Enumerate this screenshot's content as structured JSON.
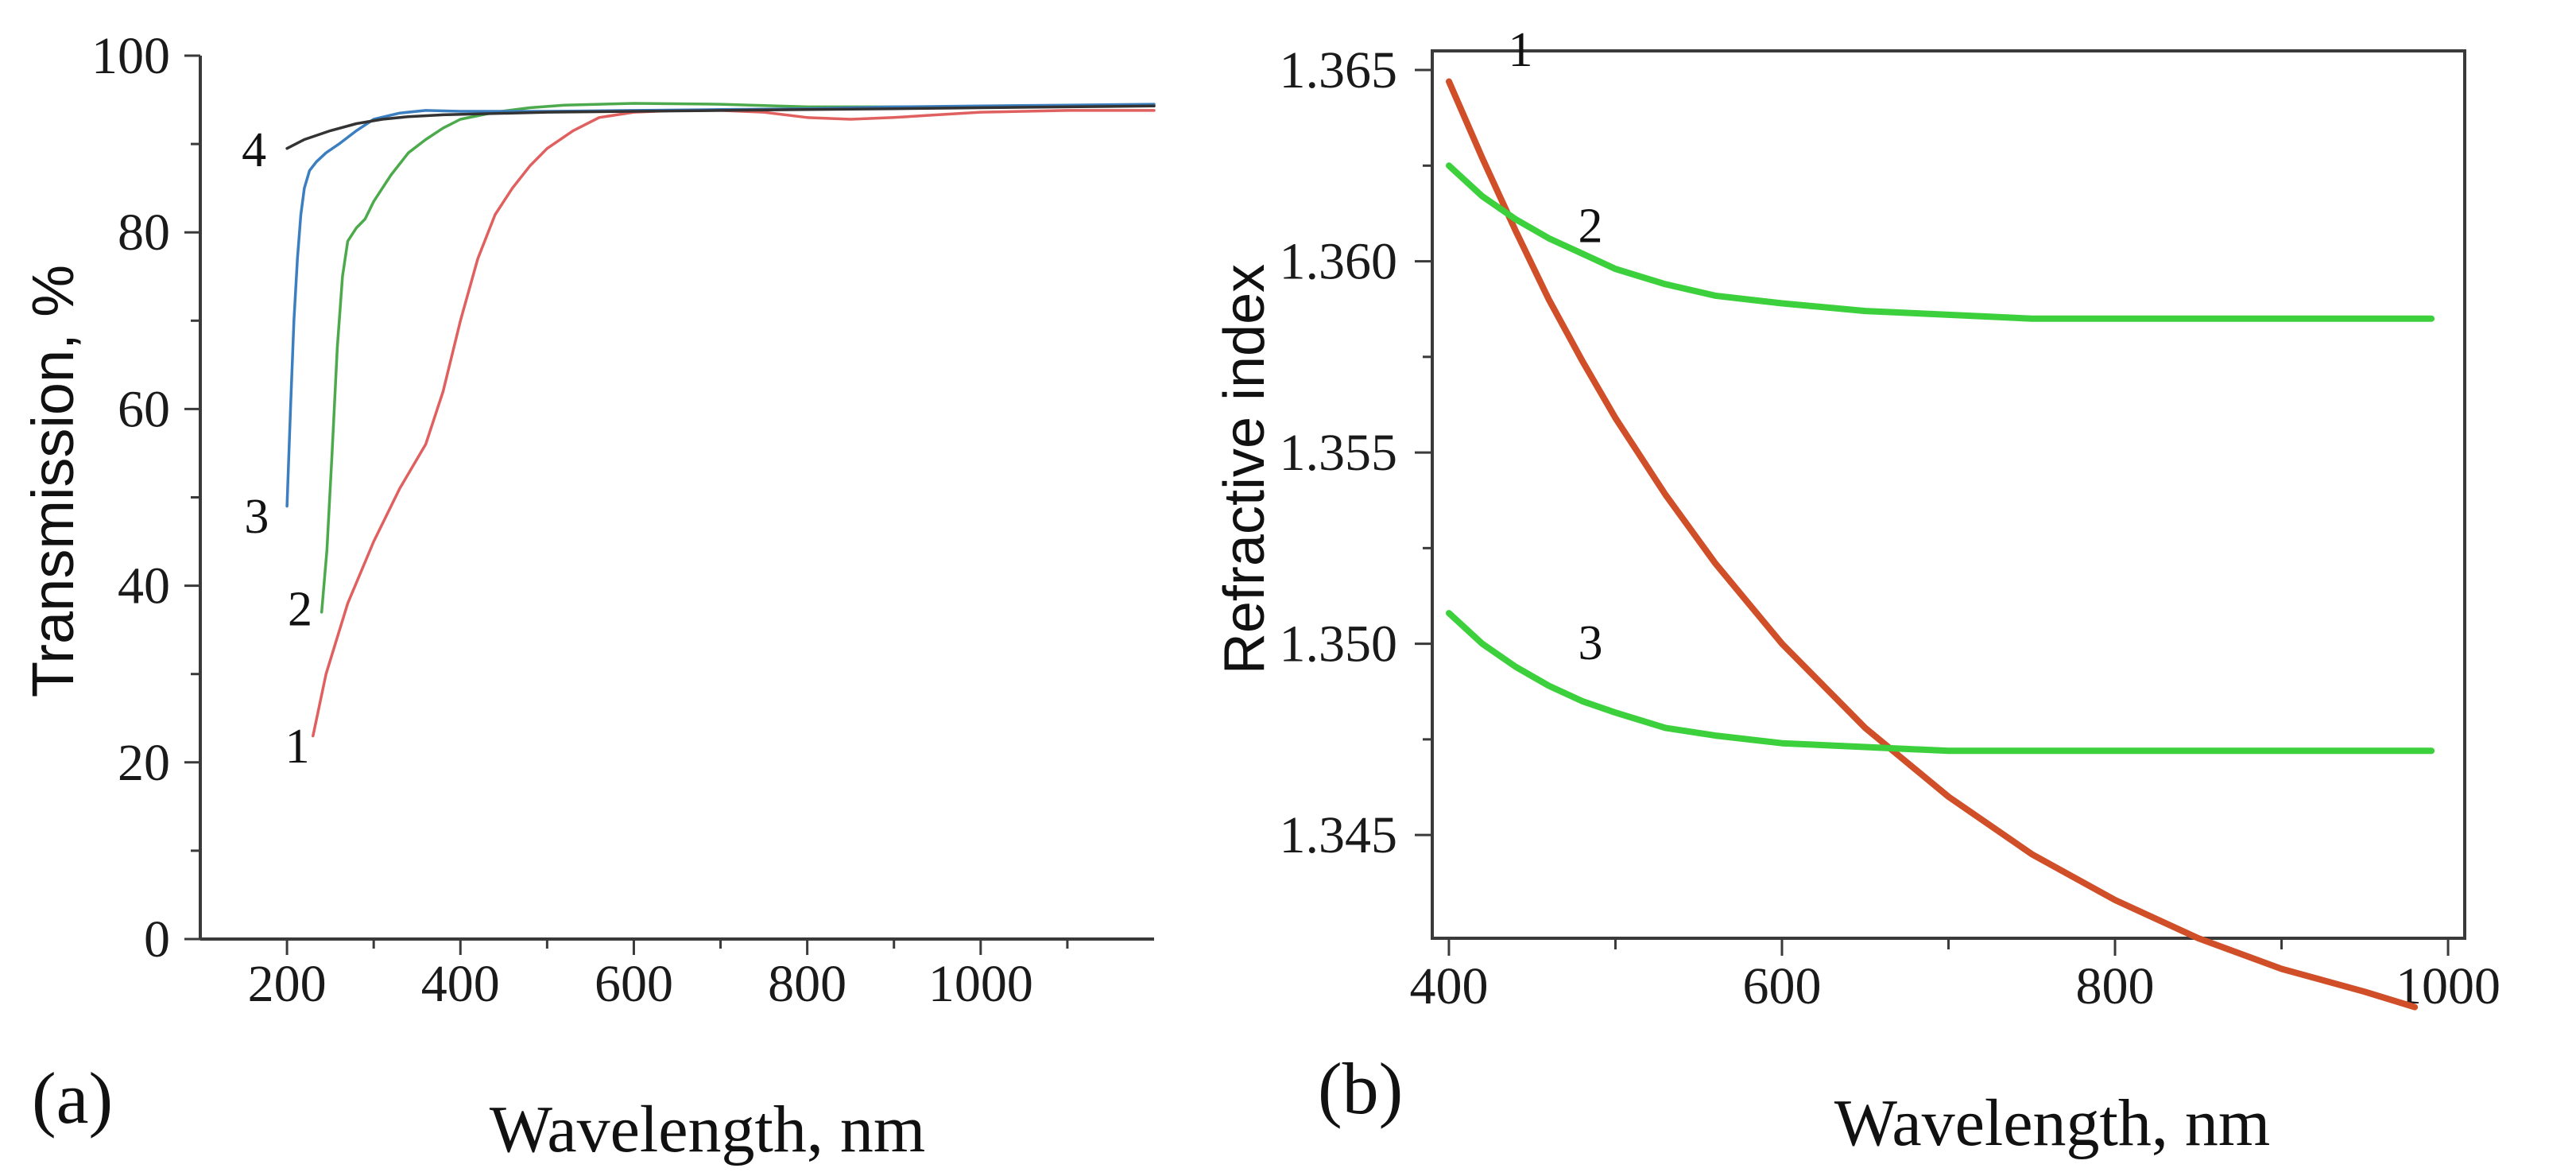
{
  "chart_data": [
    {
      "id": "a",
      "type": "line",
      "panel_label": "(a)",
      "xlabel": "Wavelength, nm",
      "ylabel": "Transmission, %",
      "xlim": [
        100,
        1200
      ],
      "ylim": [
        0,
        100
      ],
      "xticks": [
        200,
        400,
        600,
        800,
        1000
      ],
      "yticks": [
        0,
        20,
        40,
        60,
        80,
        100
      ],
      "series": [
        {
          "name": "1",
          "color": "#e06060",
          "x": [
            230,
            245,
            270,
            300,
            330,
            360,
            380,
            400,
            420,
            440,
            460,
            480,
            500,
            530,
            560,
            600,
            650,
            700,
            750,
            800,
            850,
            900,
            950,
            1000,
            1100,
            1200
          ],
          "y": [
            23,
            30,
            38,
            45,
            51,
            56,
            62,
            70,
            77,
            82,
            85,
            87.5,
            89.5,
            91.5,
            93,
            93.6,
            93.8,
            93.8,
            93.6,
            93.0,
            92.8,
            93.0,
            93.3,
            93.6,
            93.8,
            93.8
          ]
        },
        {
          "name": "2",
          "color": "#4caa4c",
          "x": [
            240,
            246,
            252,
            258,
            264,
            270,
            280,
            290,
            300,
            320,
            340,
            360,
            380,
            400,
            440,
            480,
            520,
            560,
            600,
            700,
            800,
            900,
            1000,
            1100,
            1200
          ],
          "y": [
            37,
            44,
            55,
            67,
            75,
            79,
            80.5,
            81.5,
            83.5,
            86.5,
            89,
            90.5,
            91.8,
            92.8,
            93.6,
            94.1,
            94.4,
            94.5,
            94.6,
            94.5,
            94.2,
            94.2,
            94.2,
            94.3,
            94.3
          ]
        },
        {
          "name": "3",
          "color": "#3c7fc0",
          "x": [
            200,
            204,
            208,
            212,
            216,
            220,
            226,
            234,
            245,
            260,
            280,
            300,
            330,
            360,
            400,
            500,
            600,
            700,
            800,
            900,
            1000,
            1100,
            1200
          ],
          "y": [
            49,
            60,
            70,
            77,
            82,
            85,
            87,
            88,
            89,
            90,
            91.5,
            92.8,
            93.5,
            93.8,
            93.7,
            93.7,
            93.8,
            93.9,
            94.0,
            94.2,
            94.3,
            94.4,
            94.5
          ]
        },
        {
          "name": "4",
          "color": "#333333",
          "x": [
            200,
            220,
            250,
            280,
            310,
            340,
            380,
            420,
            500,
            600,
            700,
            800,
            900,
            1000,
            1100,
            1200
          ],
          "y": [
            89.5,
            90.5,
            91.5,
            92.3,
            92.8,
            93.1,
            93.3,
            93.4,
            93.6,
            93.7,
            93.8,
            93.9,
            94.0,
            94.1,
            94.2,
            94.3
          ]
        }
      ],
      "curve_labels": [
        {
          "text": "1",
          "x": 212,
          "y": 20
        },
        {
          "text": "2",
          "x": 215,
          "y": 35.5
        },
        {
          "text": "3",
          "x": 165,
          "y": 46
        },
        {
          "text": "4",
          "x": 162,
          "y": 87.5
        }
      ]
    },
    {
      "id": "b",
      "type": "line",
      "panel_label": "(b)",
      "xlabel": "Wavelength, nm",
      "ylabel": "Refractive index",
      "xlim": [
        390,
        1010
      ],
      "ylim": [
        1.3423,
        1.3655
      ],
      "xticks": [
        400,
        600,
        800,
        1000
      ],
      "xminor": [
        500,
        700,
        900
      ],
      "yticks": [
        1.345,
        1.35,
        1.355,
        1.36,
        1.365
      ],
      "ytick_labels": [
        "1.345",
        "1.350",
        "1.355",
        "1.360",
        "1.365"
      ],
      "series": [
        {
          "name": "1",
          "color": "#d04e28",
          "x": [
            400,
            420,
            440,
            460,
            480,
            500,
            530,
            560,
            600,
            650,
            700,
            750,
            800,
            850,
            900,
            950,
            980
          ],
          "y": [
            1.3647,
            1.3627,
            1.3608,
            1.359,
            1.3574,
            1.3559,
            1.3539,
            1.3521,
            1.35,
            1.3478,
            1.346,
            1.3445,
            1.3433,
            1.3423,
            1.3415,
            1.3409,
            1.3405
          ]
        },
        {
          "name": "2",
          "color": "#3cd03c",
          "x": [
            400,
            420,
            440,
            460,
            480,
            500,
            530,
            560,
            600,
            650,
            700,
            750,
            800,
            850,
            900,
            950,
            990
          ],
          "y": [
            1.3625,
            1.3617,
            1.3611,
            1.3606,
            1.3602,
            1.3598,
            1.3594,
            1.3591,
            1.3589,
            1.3587,
            1.3586,
            1.3585,
            1.3585,
            1.3585,
            1.3585,
            1.3585,
            1.3585
          ]
        },
        {
          "name": "3",
          "color": "#3cd03c",
          "x": [
            400,
            420,
            440,
            460,
            480,
            500,
            530,
            560,
            600,
            650,
            700,
            750,
            800,
            850,
            900,
            950,
            990
          ],
          "y": [
            1.3508,
            1.35,
            1.3494,
            1.3489,
            1.3485,
            1.3482,
            1.3478,
            1.3476,
            1.3474,
            1.3473,
            1.3472,
            1.3472,
            1.3472,
            1.3472,
            1.3472,
            1.3472,
            1.3472
          ]
        }
      ],
      "curve_labels": [
        {
          "text": "1",
          "x": 443,
          "y": 1.3651
        },
        {
          "text": "2",
          "x": 485,
          "y": 1.3605
        },
        {
          "text": "3",
          "x": 485,
          "y": 1.3496
        }
      ]
    }
  ]
}
